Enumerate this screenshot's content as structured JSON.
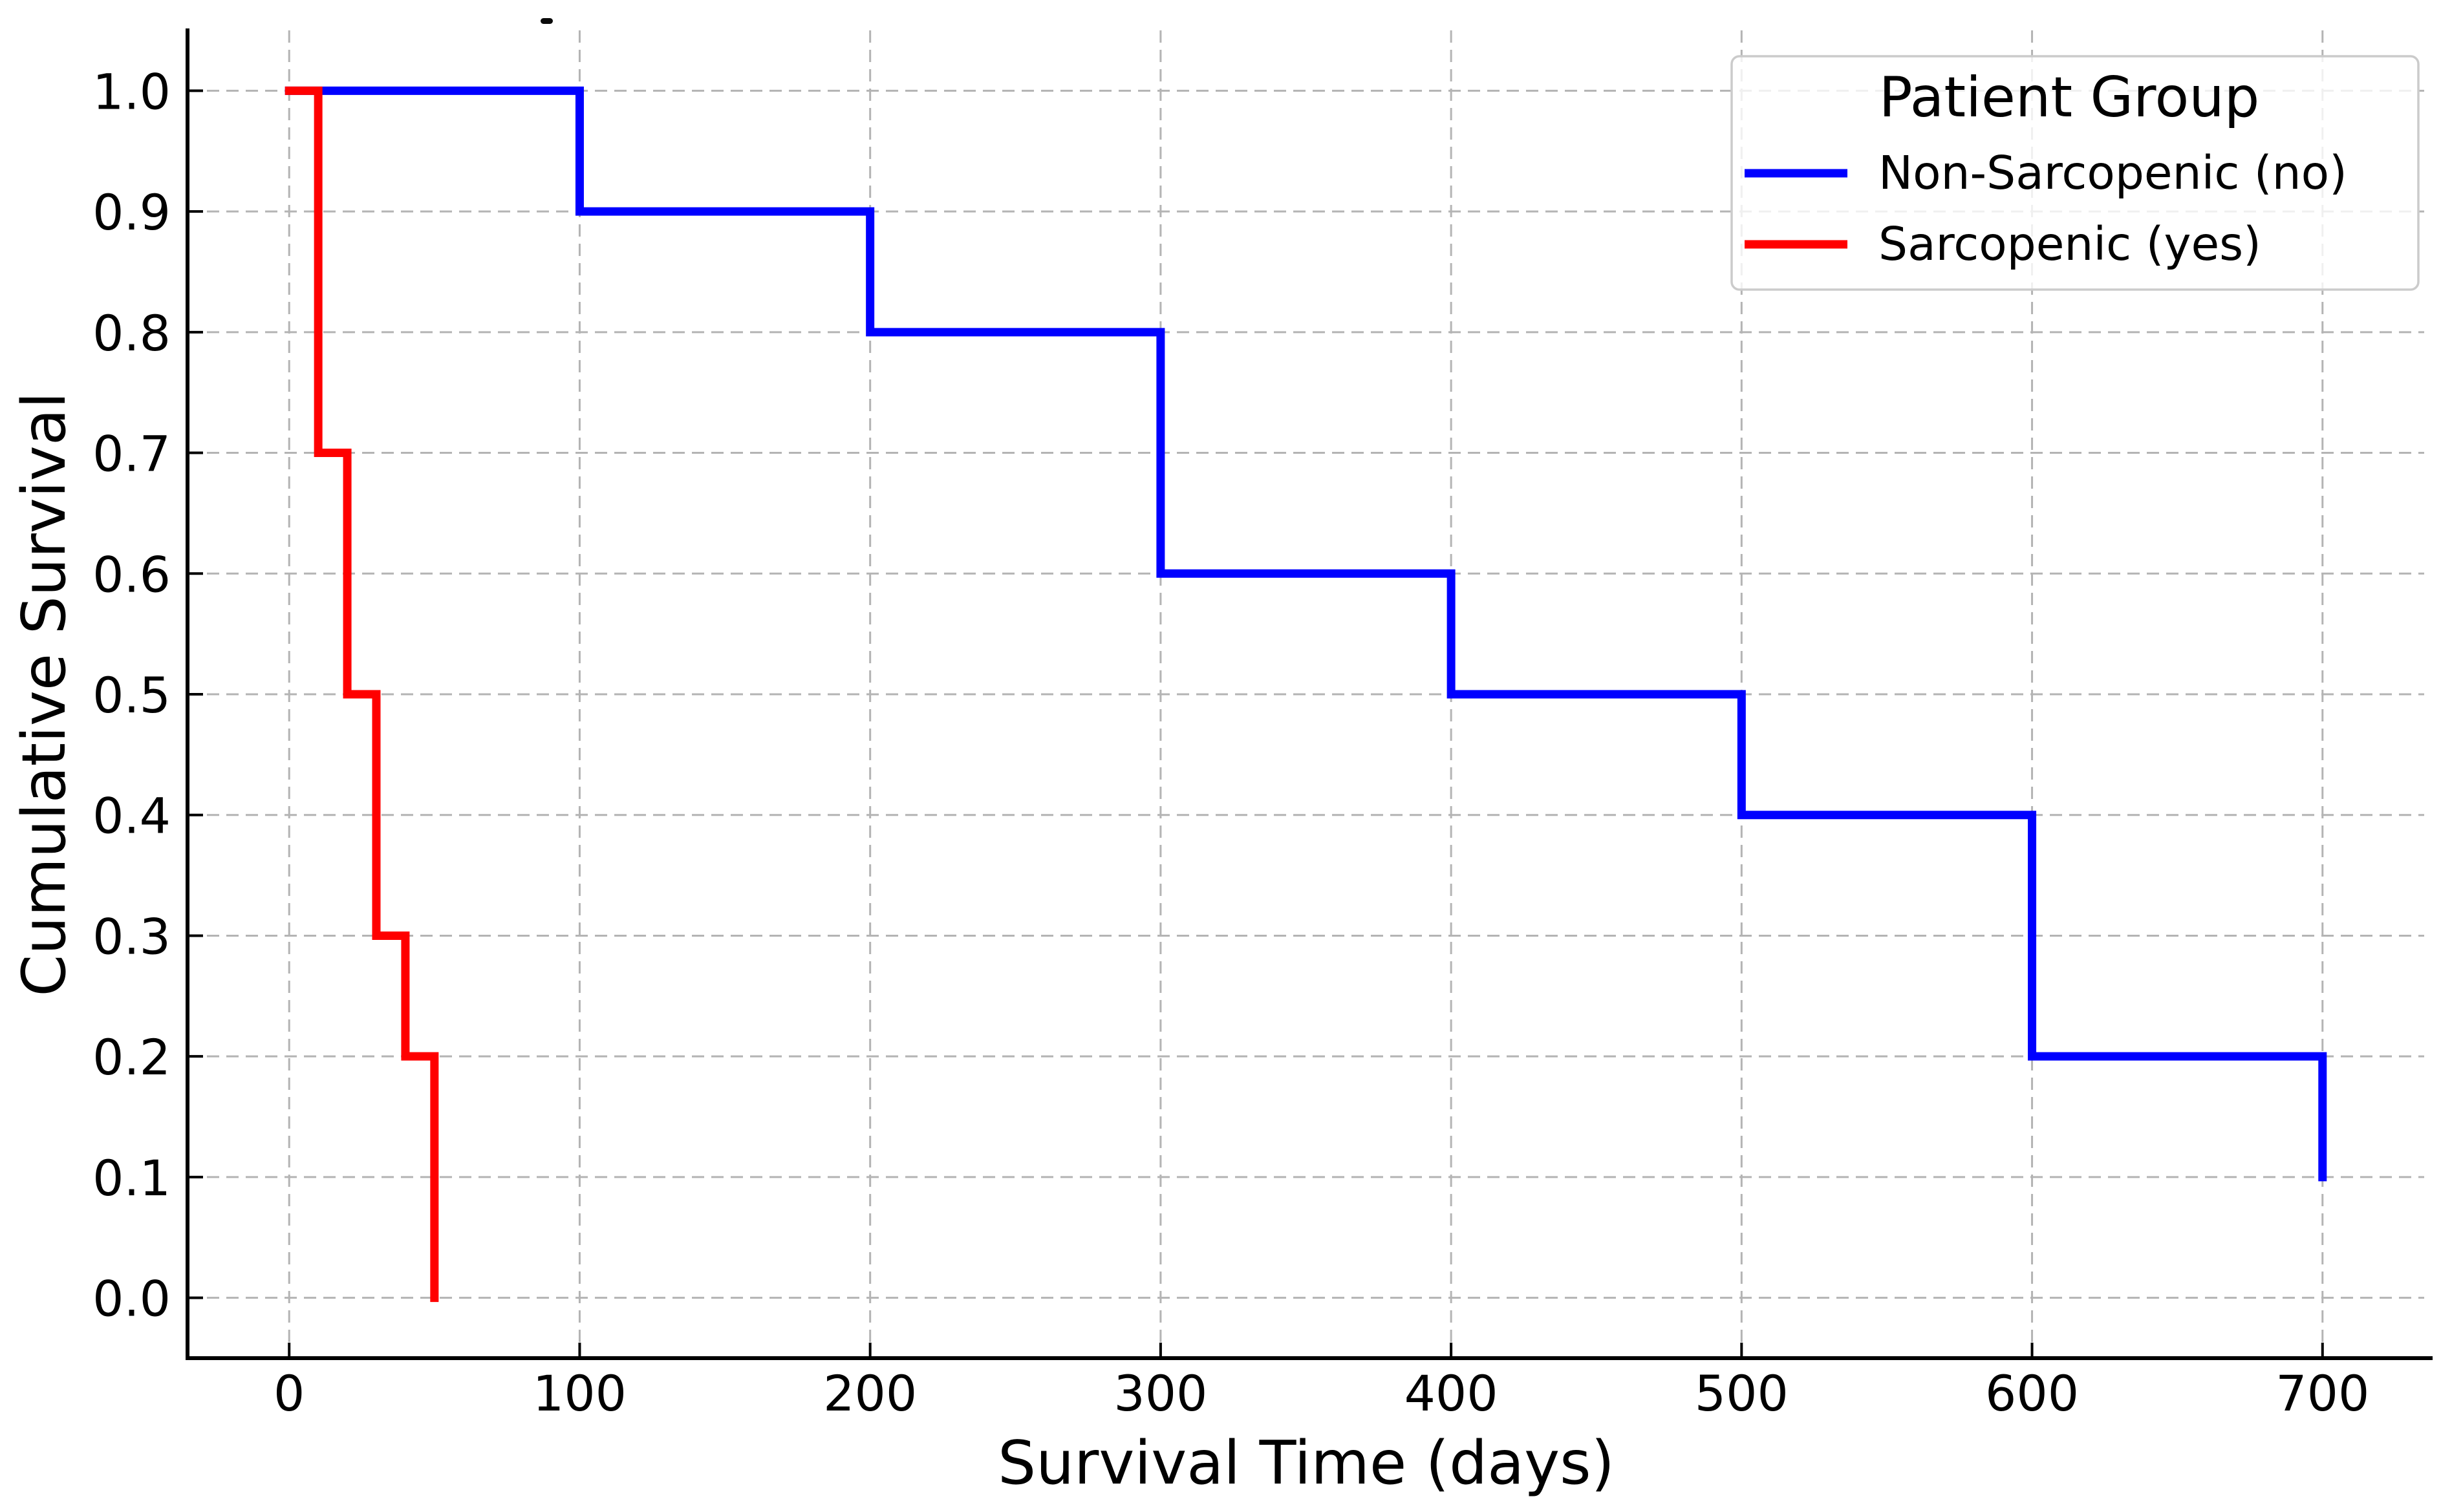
{
  "chart_data": {
    "type": "line",
    "subtype": "kaplan-meier-step",
    "title": "",
    "xlabel": "Survival Time (days)",
    "ylabel": "Cumulative Survival",
    "xlim": [
      -35,
      735
    ],
    "ylim": [
      -0.05,
      1.05
    ],
    "grid": true,
    "grid_color": "#b4b4b4",
    "grid_style": "dashed",
    "background_color": "#ffffff",
    "axis_color": "#000000",
    "x_ticks": [
      0,
      100,
      200,
      300,
      400,
      500,
      600,
      700
    ],
    "x_tick_labels": [
      "0",
      "100",
      "200",
      "300",
      "400",
      "500",
      "600",
      "700"
    ],
    "y_ticks": [
      0.0,
      0.1,
      0.2,
      0.3,
      0.4,
      0.5,
      0.6,
      0.7,
      0.8,
      0.9,
      1.0
    ],
    "y_tick_labels": [
      "0.0",
      "0.1",
      "0.2",
      "0.3",
      "0.4",
      "0.5",
      "0.6",
      "0.7",
      "0.8",
      "0.9",
      "1.0"
    ],
    "legend": {
      "title": "Patient Group",
      "location": "upper-right",
      "entries": [
        {
          "label": "Non-Sarcopenic (no)",
          "color": "#0000ff"
        },
        {
          "label": "Sarcopenic (yes)",
          "color": "#ff0000"
        }
      ]
    },
    "series": [
      {
        "name": "Non-Sarcopenic (no)",
        "color": "#0000ff",
        "step": "post",
        "x": [
          0,
          100,
          200,
          300,
          400,
          500,
          600,
          700
        ],
        "y": [
          1.0,
          0.9,
          0.8,
          0.6,
          0.5,
          0.4,
          0.2,
          0.1
        ]
      },
      {
        "name": "Sarcopenic (yes)",
        "color": "#ff0000",
        "step": "post",
        "x": [
          0,
          10,
          20,
          30,
          40,
          50
        ],
        "y": [
          1.0,
          0.7,
          0.5,
          0.3,
          0.2,
          0.0
        ]
      }
    ]
  }
}
